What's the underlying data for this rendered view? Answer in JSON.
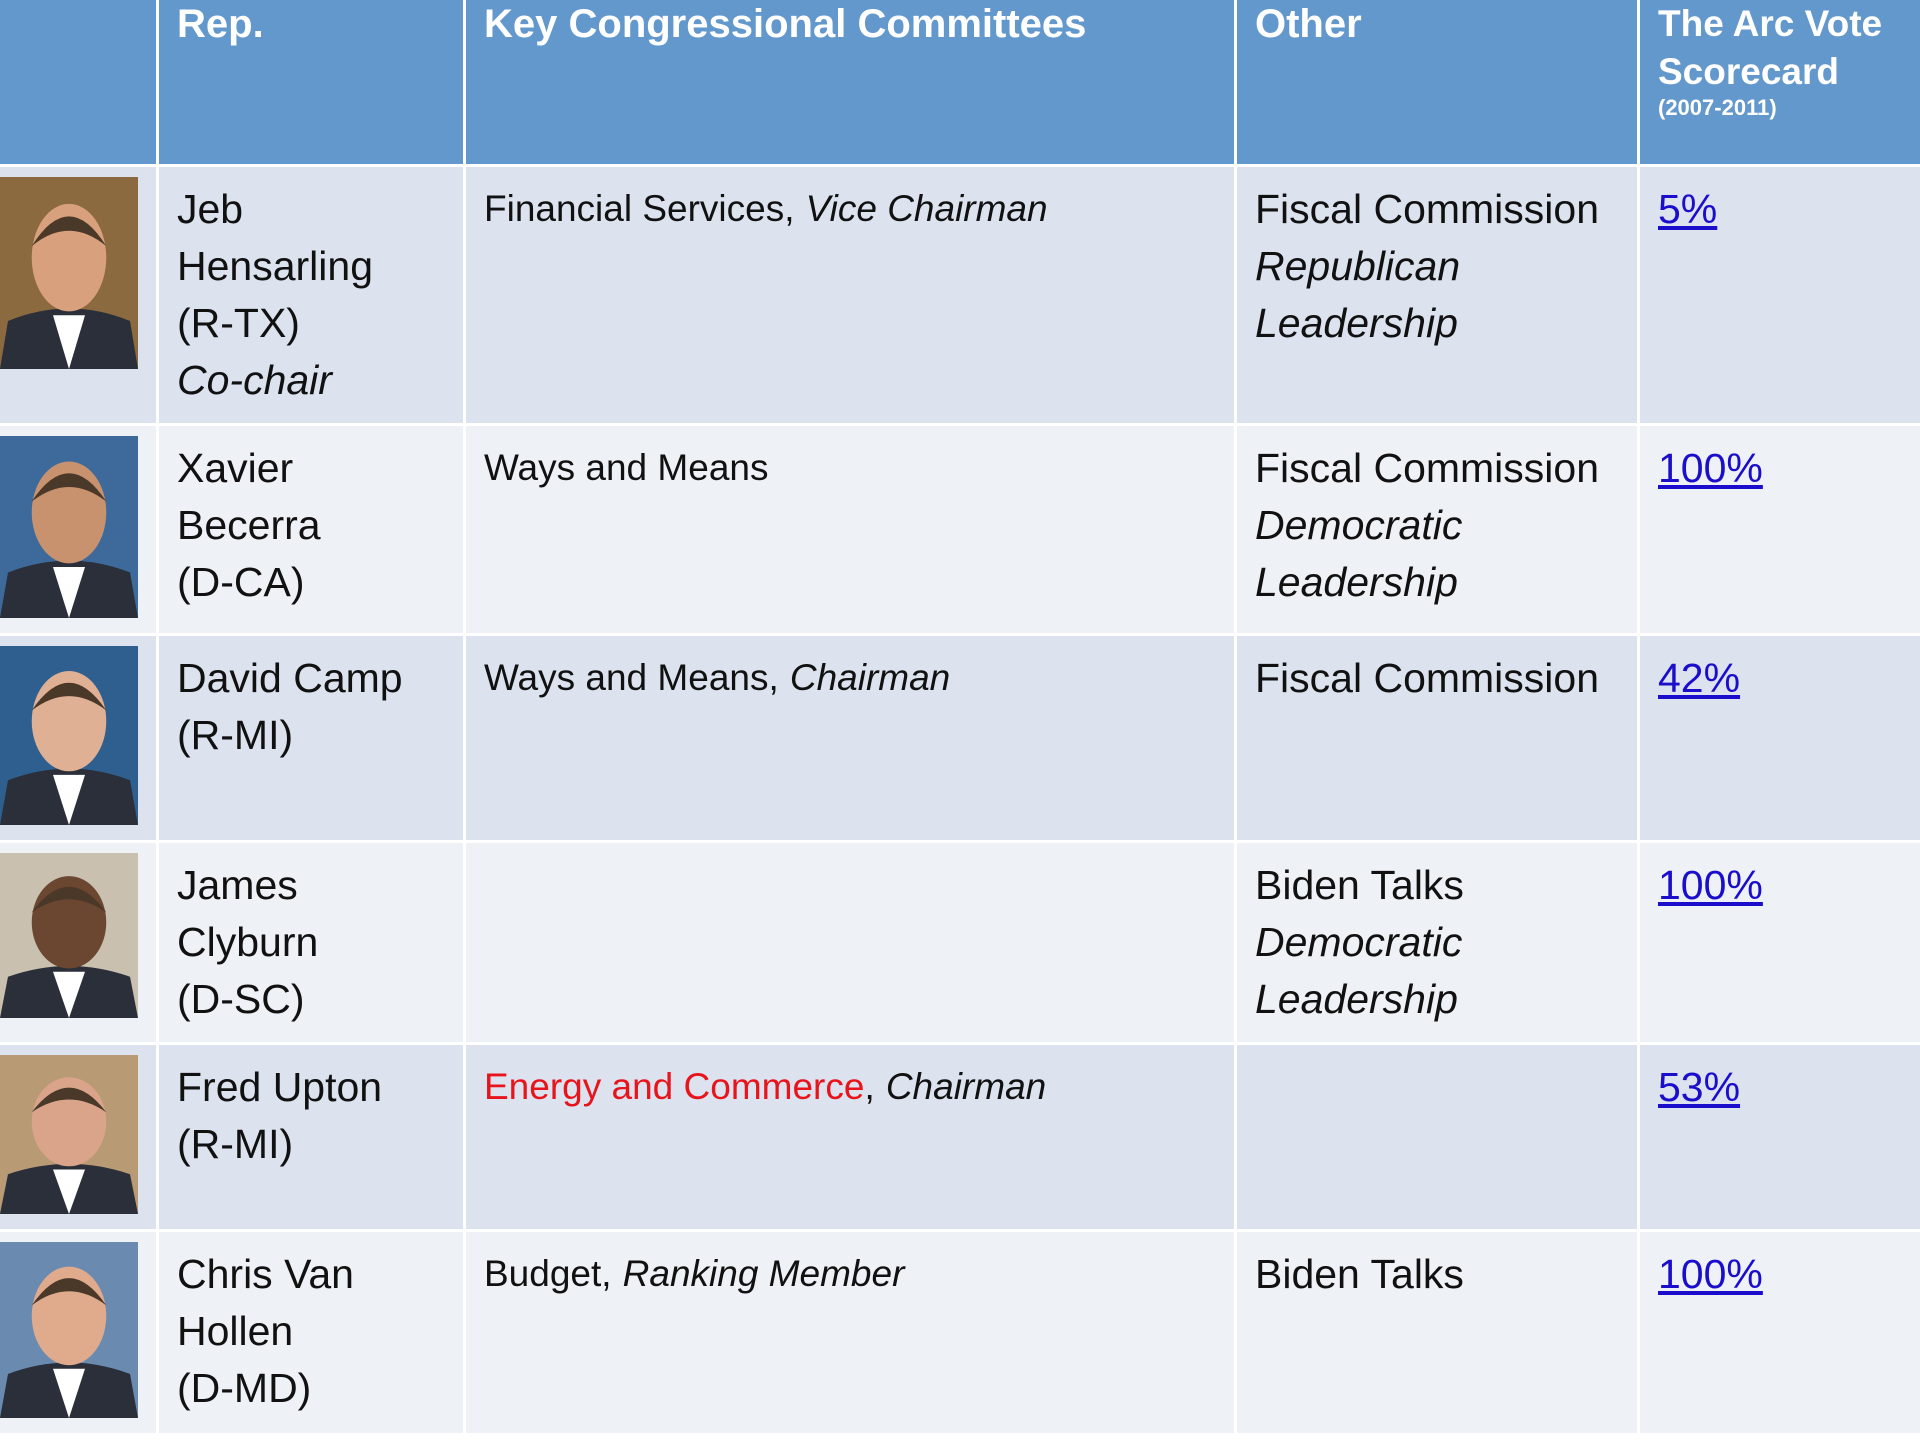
{
  "header": {
    "rep": "Rep.",
    "committees": "Key Congressional Committees",
    "other": "Other",
    "scorecard": "The Arc Vote Scorecard",
    "scorecard_years": "(2007-2011)"
  },
  "rows": [
    {
      "name": "Jeb Hensarling",
      "party": "(R-TX)",
      "role": "Co-chair",
      "committee": {
        "name": "Financial Services",
        "sep": ",",
        "role": "Vice Chairman"
      },
      "other": {
        "group": "Fiscal Commission",
        "note": "Republican Leadership"
      },
      "score": "5%"
    },
    {
      "name": "Xavier Becerra",
      "party": "(D-CA)",
      "committee": {
        "name": "Ways and Means"
      },
      "other": {
        "group": "Fiscal Commission",
        "note": "Democratic Leadership"
      },
      "score": "100%"
    },
    {
      "name": "David Camp",
      "party": "(R-MI)",
      "committee": {
        "name": "Ways and Means",
        "sep": ",",
        "role": "Chairman"
      },
      "other": {
        "group": "Fiscal Commission"
      },
      "score": "42%"
    },
    {
      "name": "James Clyburn",
      "party": "(D-SC)",
      "other": {
        "group": "Biden Talks",
        "note": "Democratic Leadership"
      },
      "score": "100%"
    },
    {
      "name": "Fred Upton",
      "party": "(R-MI)",
      "committee": {
        "name": "Energy and Commerce",
        "sep": ",",
        "role": "Chairman",
        "highlight": true
      },
      "score": "53%"
    },
    {
      "name": "Chris Van Hollen",
      "party": "(D-MD)",
      "committee": {
        "name": "Budget",
        "sep": ",",
        "role": "Ranking Member"
      },
      "other": {
        "group": "Biden Talks"
      },
      "score": "100%"
    }
  ]
}
